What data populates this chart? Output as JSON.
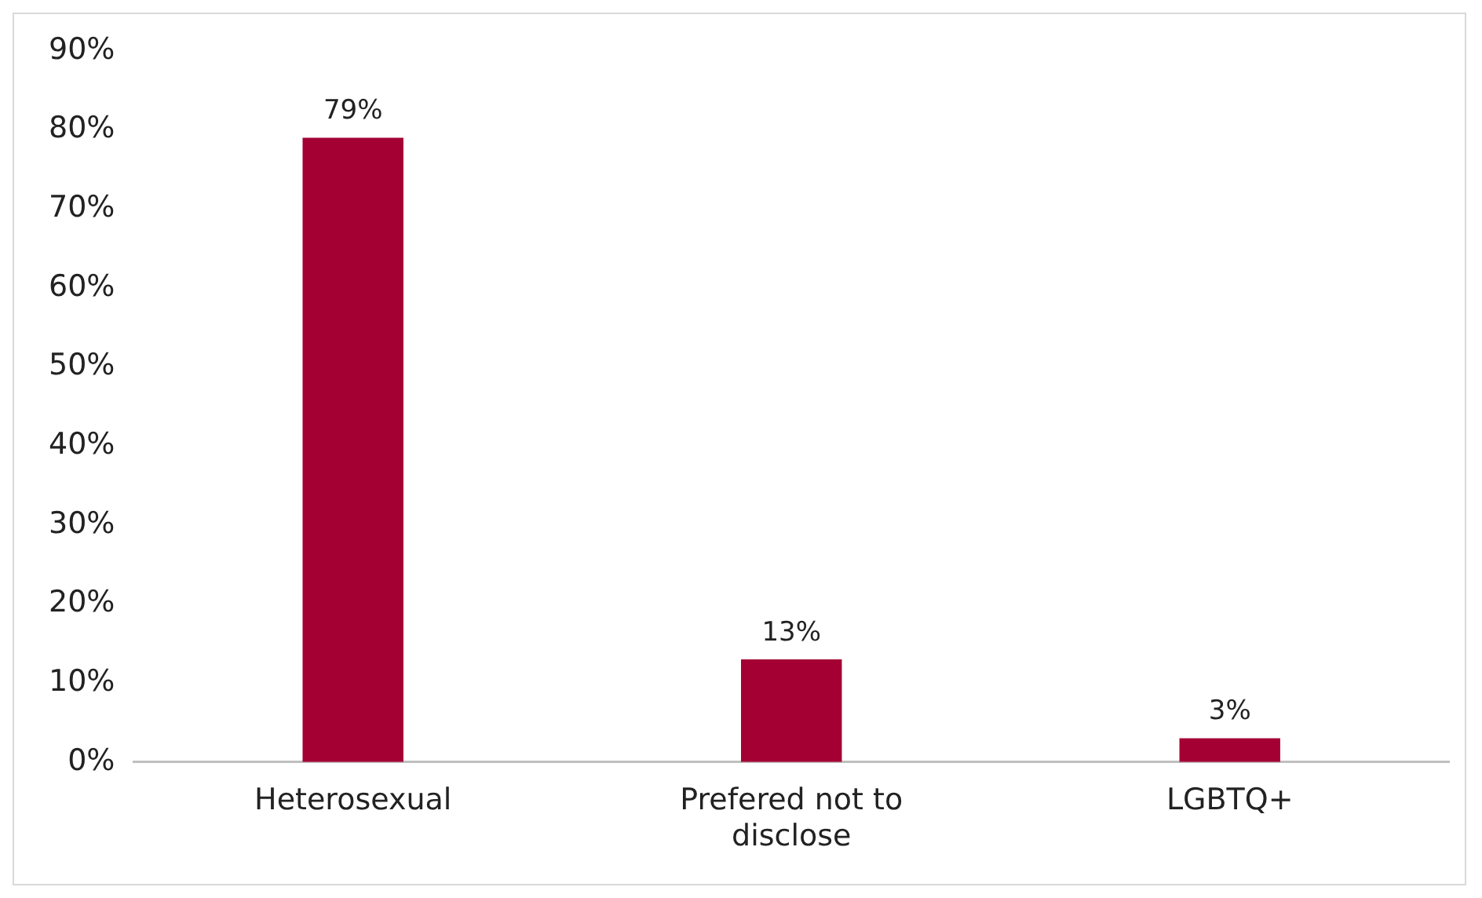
{
  "chart_data": {
    "type": "bar",
    "categories": [
      "Heterosexual",
      "Prefered not to disclose",
      "LGBTQ+"
    ],
    "values": [
      79,
      13,
      3
    ],
    "color": "#a50034",
    "value_labels": [
      "79%",
      "13%",
      "3%"
    ],
    "ylim": [
      0,
      90
    ],
    "yticks": [
      {
        "value": 0,
        "label": "0%"
      },
      {
        "value": 10,
        "label": "10%"
      },
      {
        "value": 20,
        "label": "20%"
      },
      {
        "value": 30,
        "label": "30%"
      },
      {
        "value": 40,
        "label": "40%"
      },
      {
        "value": 50,
        "label": "50%"
      },
      {
        "value": 60,
        "label": "60%"
      },
      {
        "value": 70,
        "label": "70%"
      },
      {
        "value": 80,
        "label": "80%"
      },
      {
        "value": 90,
        "label": "90%"
      }
    ],
    "grid": false,
    "legend": false
  }
}
